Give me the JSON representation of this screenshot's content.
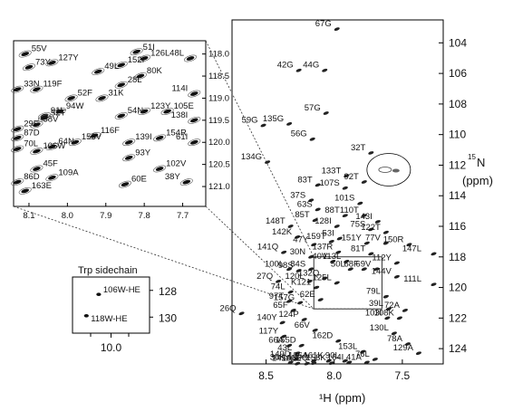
{
  "chart_data": [
    {
      "type": "scatter",
      "subtype": "2D 1H-15N HSQC spectrum",
      "xlabel": "¹H (ppm)",
      "ylabel_prefix": "15",
      "ylabel_main": "N",
      "ylabel_unit": "(ppm)",
      "xlim": [
        8.75,
        7.2
      ],
      "ylim": [
        125,
        102.5
      ],
      "x_reversed": true,
      "y_reversed": true,
      "xticks": [
        "8.5",
        "8.0",
        "7.5"
      ],
      "yticks": [
        "104",
        "106",
        "108",
        "110",
        "112",
        "114",
        "116",
        "118",
        "120",
        "122",
        "124"
      ],
      "grid": false,
      "points": [
        {
          "label": "67G",
          "x": 7.98,
          "y": 103.1
        },
        {
          "label": "42G",
          "x": 8.26,
          "y": 105.8
        },
        {
          "label": "44G",
          "x": 8.07,
          "y": 105.8
        },
        {
          "label": "135G",
          "x": 8.33,
          "y": 109.3
        },
        {
          "label": "57G",
          "x": 8.06,
          "y": 108.6
        },
        {
          "label": "59G",
          "x": 8.52,
          "y": 109.4
        },
        {
          "label": "56G",
          "x": 8.16,
          "y": 110.3
        },
        {
          "label": "134G",
          "x": 8.49,
          "y": 111.8
        },
        {
          "label": "32T",
          "x": 7.73,
          "y": 111.2
        },
        {
          "label": "133T",
          "x": 7.91,
          "y": 112.7
        },
        {
          "label": "92T",
          "x": 7.78,
          "y": 113.1
        },
        {
          "label": "83T",
          "x": 8.12,
          "y": 113.3
        },
        {
          "label": "107S",
          "x": 7.92,
          "y": 113.5
        },
        {
          "label": "37S",
          "x": 8.17,
          "y": 114.3
        },
        {
          "label": "63S",
          "x": 8.12,
          "y": 114.9
        },
        {
          "label": "101S",
          "x": 7.81,
          "y": 114.5
        },
        {
          "label": "148T",
          "x": 8.32,
          "y": 116.0
        },
        {
          "label": "85T",
          "x": 8.14,
          "y": 115.6
        },
        {
          "label": "88T",
          "x": 7.92,
          "y": 115.3
        },
        {
          "label": "110T",
          "x": 7.78,
          "y": 115.3
        },
        {
          "label": "142K",
          "x": 8.27,
          "y": 116.7
        },
        {
          "label": "128I",
          "x": 7.98,
          "y": 116.0
        },
        {
          "label": "75S",
          "x": 7.73,
          "y": 116.2
        },
        {
          "label": "143I",
          "x": 7.68,
          "y": 115.7
        },
        {
          "label": "122T",
          "x": 7.62,
          "y": 116.4
        },
        {
          "label": "47Y",
          "x": 8.15,
          "y": 117.2
        },
        {
          "label": "159T",
          "x": 8.02,
          "y": 117.0
        },
        {
          "label": "53I",
          "x": 7.96,
          "y": 116.8
        },
        {
          "label": "151Y",
          "x": 7.76,
          "y": 117.1
        },
        {
          "label": "77V",
          "x": 7.62,
          "y": 117.1
        },
        {
          "label": "150R",
          "x": 7.45,
          "y": 117.2
        },
        {
          "label": "147L",
          "x": 7.27,
          "y": 117.8
        },
        {
          "label": "141Q",
          "x": 8.37,
          "y": 117.7
        },
        {
          "label": "137R",
          "x": 7.97,
          "y": 117.7
        },
        {
          "label": "81T",
          "x": 7.73,
          "y": 117.8
        },
        {
          "label": "30N",
          "x": 8.17,
          "y": 118.0
        },
        {
          "label": "40V",
          "x": 8.01,
          "y": 118.3
        },
        {
          "label": "113L",
          "x": 7.91,
          "y": 118.3
        },
        {
          "label": "112Y",
          "x": 7.54,
          "y": 118.4
        },
        {
          "label": "100L",
          "x": 8.33,
          "y": 118.8
        },
        {
          "label": "98S",
          "x": 8.26,
          "y": 118.9
        },
        {
          "label": "84S",
          "x": 8.17,
          "y": 118.8
        },
        {
          "label": "50L",
          "x": 7.88,
          "y": 118.8
        },
        {
          "label": "68F",
          "x": 7.78,
          "y": 118.8
        },
        {
          "label": "69V",
          "x": 7.69,
          "y": 118.8
        },
        {
          "label": "144V",
          "x": 7.54,
          "y": 119.3
        },
        {
          "label": "111L",
          "x": 7.27,
          "y": 119.8
        },
        {
          "label": "27Q",
          "x": 8.41,
          "y": 119.6
        },
        {
          "label": "120L",
          "x": 8.18,
          "y": 119.6
        },
        {
          "label": "132Q",
          "x": 8.07,
          "y": 119.4
        },
        {
          "label": "125L",
          "x": 7.98,
          "y": 119.7
        },
        {
          "label": "74L",
          "x": 8.32,
          "y": 120.3
        },
        {
          "label": "97T",
          "x": 8.33,
          "y": 120.9
        },
        {
          "label": "157G",
          "x": 8.25,
          "y": 121.0
        },
        {
          "label": "79L",
          "x": 7.62,
          "y": 120.6
        },
        {
          "label": "26Q",
          "x": 8.68,
          "y": 121.7
        },
        {
          "label": "65F",
          "x": 8.3,
          "y": 121.5
        },
        {
          "label": "39L",
          "x": 7.6,
          "y": 121.4
        },
        {
          "label": "72A",
          "x": 7.48,
          "y": 121.5
        },
        {
          "label": "140Y",
          "x": 8.38,
          "y": 122.3
        },
        {
          "label": "124P",
          "x": 8.22,
          "y": 122.1
        },
        {
          "label": "103I",
          "x": 7.61,
          "y": 122.0
        },
        {
          "label": "108K",
          "x": 7.52,
          "y": 122.0
        },
        {
          "label": "117Y",
          "x": 8.37,
          "y": 123.2
        },
        {
          "label": "66V",
          "x": 8.14,
          "y": 122.8
        },
        {
          "label": "130L",
          "x": 7.56,
          "y": 123.0
        },
        {
          "label": "66A",
          "x": 8.33,
          "y": 123.8
        },
        {
          "label": "155D",
          "x": 8.24,
          "y": 123.8
        },
        {
          "label": "162D",
          "x": 7.97,
          "y": 123.5
        },
        {
          "label": "78A",
          "x": 7.46,
          "y": 123.7
        },
        {
          "label": "43L",
          "x": 8.27,
          "y": 124.3
        },
        {
          "label": "153L",
          "x": 7.79,
          "y": 124.2
        },
        {
          "label": "129A",
          "x": 7.38,
          "y": 124.3
        },
        {
          "label": "149D",
          "x": 8.28,
          "y": 124.7
        },
        {
          "label": "136A",
          "x": 8.15,
          "y": 124.8
        },
        {
          "label": "161K",
          "x": 8.04,
          "y": 124.8
        },
        {
          "label": "90L",
          "x": 7.92,
          "y": 124.8
        },
        {
          "label": "36K",
          "x": 8.32,
          "y": 124.9
        },
        {
          "label": "164I",
          "x": 7.89,
          "y": 124.9
        },
        {
          "label": "41A",
          "x": 7.76,
          "y": 124.9
        },
        {
          "label": "76L",
          "x": 7.7,
          "y": 124.7
        },
        {
          "label": "89Q",
          "x": 8.15,
          "y": 124.95
        },
        {
          "label": "158K",
          "x": 8.02,
          "y": 124.95
        },
        {
          "label": "145A",
          "x": 8.27,
          "y": 124.98
        },
        {
          "label": "160E",
          "x": 8.2,
          "y": 124.98
        },
        {
          "label": "K121",
          "x": 8.13,
          "y": 120.0
        },
        {
          "label": "62E",
          "x": 8.1,
          "y": 120.8
        }
      ],
      "circled_region": {
        "x": 7.6,
        "y": 112.3
      },
      "zoom_box": {
        "x": [
          8.15,
          7.65
        ],
        "y": [
          118.0,
          121.4
        ]
      }
    },
    {
      "type": "scatter",
      "subtype": "HSQC inset zoom",
      "xlim": [
        8.14,
        7.64
      ],
      "ylim": [
        117.7,
        121.45
      ],
      "xticks": [
        "8.1",
        "8.0",
        "7.9",
        "7.8",
        "7.7"
      ],
      "yticks": [
        "118.0",
        "118.5",
        "119.0",
        "119.5",
        "120.0",
        "120.5",
        "121.0"
      ],
      "points": [
        {
          "label": "55V",
          "x": 8.11,
          "y": 118.0
        },
        {
          "label": "73Y",
          "x": 8.1,
          "y": 118.3
        },
        {
          "label": "127Y",
          "x": 8.04,
          "y": 118.2
        },
        {
          "label": "51I",
          "x": 7.82,
          "y": 117.95
        },
        {
          "label": "126L",
          "x": 7.8,
          "y": 118.1
        },
        {
          "label": "48L",
          "x": 7.68,
          "y": 118.1
        },
        {
          "label": "152I",
          "x": 7.86,
          "y": 118.25
        },
        {
          "label": "49L",
          "x": 7.92,
          "y": 118.4
        },
        {
          "label": "80K",
          "x": 7.81,
          "y": 118.5
        },
        {
          "label": "33N",
          "x": 8.13,
          "y": 118.8
        },
        {
          "label": "119F",
          "x": 8.08,
          "y": 118.8
        },
        {
          "label": "28L",
          "x": 7.86,
          "y": 118.7
        },
        {
          "label": "114I",
          "x": 7.67,
          "y": 118.9
        },
        {
          "label": "52F",
          "x": 7.99,
          "y": 119.0
        },
        {
          "label": "31K",
          "x": 7.91,
          "y": 119.0
        },
        {
          "label": "94W",
          "x": 8.02,
          "y": 119.3
        },
        {
          "label": "91L",
          "x": 8.06,
          "y": 119.4
        },
        {
          "label": "58V",
          "x": 8.08,
          "y": 119.6
        },
        {
          "label": "52T",
          "x": 8.06,
          "y": 119.45
        },
        {
          "label": "29E",
          "x": 8.13,
          "y": 119.7
        },
        {
          "label": "54N",
          "x": 7.86,
          "y": 119.4
        },
        {
          "label": "123Y",
          "x": 7.8,
          "y": 119.3
        },
        {
          "label": "105E",
          "x": 7.74,
          "y": 119.3
        },
        {
          "label": "138I",
          "x": 7.67,
          "y": 119.5
        },
        {
          "label": "116F",
          "x": 7.93,
          "y": 119.85
        },
        {
          "label": "87D",
          "x": 8.13,
          "y": 119.9
        },
        {
          "label": "156V",
          "x": 7.98,
          "y": 120.0
        },
        {
          "label": "64N",
          "x": 8.04,
          "y": 120.1
        },
        {
          "label": "139I",
          "x": 7.84,
          "y": 120.0
        },
        {
          "label": "154R",
          "x": 7.76,
          "y": 119.9
        },
        {
          "label": "61I",
          "x": 7.67,
          "y": 120.0
        },
        {
          "label": "106W",
          "x": 8.08,
          "y": 120.2
        },
        {
          "label": "70L",
          "x": 8.13,
          "y": 120.15
        },
        {
          "label": "93Y",
          "x": 7.84,
          "y": 120.35
        },
        {
          "label": "45F",
          "x": 8.08,
          "y": 120.6
        },
        {
          "label": "109A",
          "x": 8.04,
          "y": 120.8
        },
        {
          "label": "102V",
          "x": 7.76,
          "y": 120.6
        },
        {
          "label": "86D",
          "x": 8.13,
          "y": 120.9
        },
        {
          "label": "163E",
          "x": 8.11,
          "y": 121.1
        },
        {
          "label": "60E",
          "x": 7.85,
          "y": 120.95
        },
        {
          "label": "38Y",
          "x": 7.69,
          "y": 120.9
        }
      ]
    },
    {
      "type": "scatter",
      "subtype": "Trp sidechain inset",
      "title": "Trp sidechain",
      "xticks": [
        "10.0"
      ],
      "yticks": [
        "128",
        "130"
      ],
      "xlim": [
        10.25,
        9.75
      ],
      "ylim": [
        127,
        131.2
      ],
      "points": [
        {
          "label": "106W-HE",
          "x": 10.08,
          "y": 128.3
        },
        {
          "label": "118W-HE",
          "x": 10.16,
          "y": 129.9
        }
      ]
    }
  ]
}
